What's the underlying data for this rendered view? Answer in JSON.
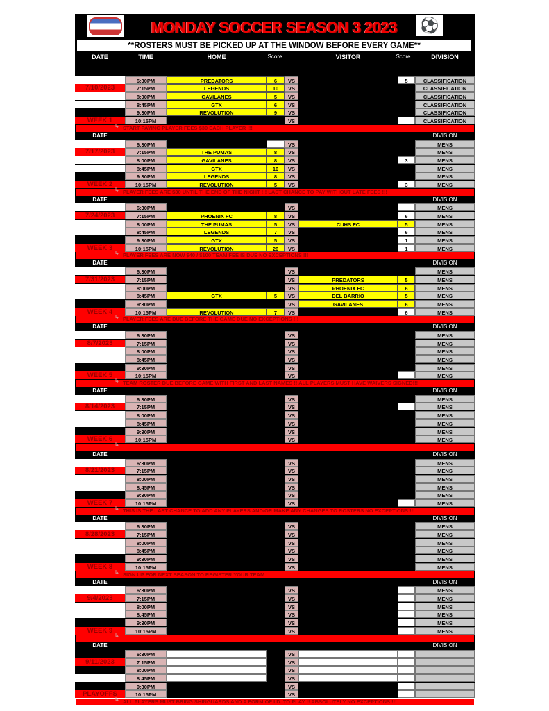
{
  "header": {
    "title": "MONDAY SOCCER SEASON 3 2023",
    "notice": "**ROSTERS MUST BE PICKED UP AT THE WINDOW BEFORE EVERY GAME**",
    "logo": "league-logo",
    "ball_icon": "soccer-ball-icon"
  },
  "columns": {
    "date": "DATE",
    "time": "TIME",
    "home": "HOME",
    "home_score": "Score",
    "visitor": "VISITOR",
    "visitor_score": "Score",
    "division": "DIVISION"
  },
  "vs_label": "VS",
  "colors": {
    "red": "#ff0000",
    "yellow": "#ffff00",
    "time_bg": "#d9b4b4",
    "division_bg": "#c8c8c8"
  },
  "weeks": [
    {
      "date": "7/10/2023",
      "label": "WEEK 1",
      "division": "CLASSIFICATION",
      "note": "START PAYING PLAYER FEES $30 EACH PLAYER !!!",
      "games": [
        [
          "6:30PM",
          "PREDATORS",
          "6",
          null,
          "5"
        ],
        [
          "7:15PM",
          "LEGENDS",
          "10",
          null,
          null
        ],
        [
          "8:00PM",
          "GAVILANES",
          "5",
          null,
          null
        ],
        [
          "8:45PM",
          "GTX",
          "6",
          null,
          null
        ],
        [
          "9:30PM",
          "REVOLUTION",
          "9",
          null,
          null
        ],
        [
          "10:15PM",
          null,
          null,
          null,
          ""
        ]
      ]
    },
    {
      "date": "7/17/2023",
      "label": "WEEK 2",
      "division": "MENS",
      "note": "PLAYER FEES ARE $30 UNTIL THE END OF THE NIGHT !!! LAST CHANCE TO PAY WITHOUT LATE FEES !!!",
      "games": [
        [
          "6:30PM",
          null,
          "",
          null,
          null
        ],
        [
          "7:15PM",
          "THE PUMAS",
          "8",
          null,
          null
        ],
        [
          "8:00PM",
          "GAVILANES",
          "8",
          null,
          "3"
        ],
        [
          "8:45PM",
          "GTX",
          "10",
          null,
          null
        ],
        [
          "9:30PM",
          "LEGENDS",
          "8",
          null,
          null
        ],
        [
          "10:15PM",
          "REVOLUTION",
          "5",
          null,
          "3"
        ]
      ]
    },
    {
      "date": "7/24/2023",
      "label": "WEEK 3",
      "division": "MENS",
      "note": "PLAYER FEES ARE NOW $40 / $100 TEAM FEE IS DUE NO EXCEPTIONS !!!",
      "games": [
        [
          "6:30PM",
          null,
          null,
          null,
          ""
        ],
        [
          "7:15PM",
          "PHOENIX FC",
          "8",
          null,
          "6"
        ],
        [
          "8:00PM",
          "THE PUMAS",
          "5",
          "CUHS FC",
          "5"
        ],
        [
          "8:45PM",
          "LEGENDS",
          "7",
          null,
          "6"
        ],
        [
          "9:30PM",
          "GTX",
          "5",
          null,
          "1"
        ],
        [
          "10:15PM",
          "REVOLUTION",
          "20",
          null,
          "1"
        ]
      ]
    },
    {
      "date": "7/31/2023",
      "label": "WEEK 4",
      "division": "MENS",
      "note": "PLAYER FEES ARE DUE BEFORE THE GAME DUE NO EXCEPTIONS !!!",
      "games": [
        [
          "6:30PM",
          null,
          null,
          null,
          null
        ],
        [
          "7:15PM",
          null,
          null,
          "PREDATORS",
          "5"
        ],
        [
          "8:00PM",
          null,
          null,
          "PHOENIX FC",
          "6"
        ],
        [
          "8:45PM",
          "GTX",
          "5",
          "DEL BARRIO",
          "5"
        ],
        [
          "9:30PM",
          null,
          null,
          "GAVILANES",
          "6"
        ],
        [
          "10:15PM",
          "REVOLUTION",
          "7",
          null,
          "6"
        ]
      ]
    },
    {
      "date": "8/7/2023",
      "label": "WEEK 5",
      "division": "MENS",
      "note": "TEAM ROSTER DUE BEFORE GAME WITH FIRST AND LAST NAMES !! ALL PLAYERS MUST HAVE WAIVERS SIGNED!!!",
      "games": [
        [
          "6:30PM",
          null,
          null,
          null,
          null
        ],
        [
          "7:15PM",
          null,
          null,
          null,
          null
        ],
        [
          "8:00PM",
          null,
          null,
          null,
          null
        ],
        [
          "8:45PM",
          null,
          null,
          null,
          null
        ],
        [
          "9:30PM",
          null,
          null,
          null,
          null
        ],
        [
          "10:15PM",
          null,
          null,
          null,
          ""
        ]
      ]
    },
    {
      "date": "8/14/2023",
      "label": "WEEK 6",
      "division": "MENS",
      "note": "",
      "games": [
        [
          "6:30PM",
          null,
          null,
          null,
          null
        ],
        [
          "7:15PM",
          null,
          null,
          null,
          ""
        ],
        [
          "8:00PM",
          null,
          null,
          null,
          null
        ],
        [
          "8:45PM",
          null,
          null,
          null,
          null
        ],
        [
          "9:30PM",
          null,
          null,
          null,
          null
        ],
        [
          "10:15PM",
          null,
          null,
          null,
          null
        ]
      ]
    },
    {
      "date": "8/21/2023",
      "label": "WEEK 7",
      "division": "MENS",
      "note": "THIS IS THE LAST CHANCE TO ADD ANY PLAYERS AND/OR MAKE ANY CHANGES TO ROSTERS NO EXCEPTIONS !!!",
      "games": [
        [
          "6:30PM",
          null,
          null,
          null,
          null
        ],
        [
          "7:15PM",
          null,
          null,
          null,
          null
        ],
        [
          "8:00PM",
          null,
          null,
          null,
          null
        ],
        [
          "8:45PM",
          null,
          null,
          null,
          null
        ],
        [
          "9:30PM",
          null,
          null,
          null,
          null
        ],
        [
          "10:15PM",
          null,
          null,
          null,
          ""
        ]
      ]
    },
    {
      "date": "8/28/2023",
      "label": "WEEK 8",
      "division": "MENS",
      "note": "SIGN UP FOR NEXT SEASON TO REGISTER YOUR TEAM !",
      "games": [
        [
          "6:30PM",
          null,
          null,
          null,
          null
        ],
        [
          "7:15PM",
          null,
          null,
          null,
          null
        ],
        [
          "8:00PM",
          null,
          null,
          null,
          null
        ],
        [
          "8:45PM",
          null,
          null,
          null,
          null
        ],
        [
          "9:30PM",
          null,
          null,
          null,
          null
        ],
        [
          "10:15PM",
          null,
          null,
          null,
          null
        ]
      ]
    },
    {
      "date": "9/4/2023",
      "label": "WEEK 9",
      "division": "MENS",
      "note": "",
      "games": [
        [
          "6:30PM",
          null,
          null,
          null,
          ""
        ],
        [
          "7:15PM",
          null,
          null,
          null,
          ""
        ],
        [
          "8:00PM",
          null,
          null,
          null,
          ""
        ],
        [
          "8:45PM",
          null,
          null,
          null,
          ""
        ],
        [
          "9:30PM",
          null,
          null,
          null,
          ""
        ],
        [
          "10:15PM",
          null,
          null,
          null,
          ""
        ]
      ]
    },
    {
      "date": "9/11/2023",
      "label": "PLAYOFFS",
      "division": "",
      "note": "ALL PLAYERS MUST BRING SHINGUARDS AND A FORM OF I.D. TO PLAY !! ABSOLUTELY NO EXCEPTIONS !!!",
      "games": [
        [
          "6:30PM",
          "",
          null,
          "",
          ""
        ],
        [
          "7:15PM",
          "",
          null,
          "",
          ""
        ],
        [
          "8:00PM",
          "",
          null,
          "",
          ""
        ],
        [
          "8:45PM",
          "",
          null,
          "",
          ""
        ],
        [
          "9:30PM",
          null,
          null,
          null,
          ""
        ],
        [
          "10:15PM",
          null,
          null,
          null,
          ""
        ]
      ]
    }
  ]
}
